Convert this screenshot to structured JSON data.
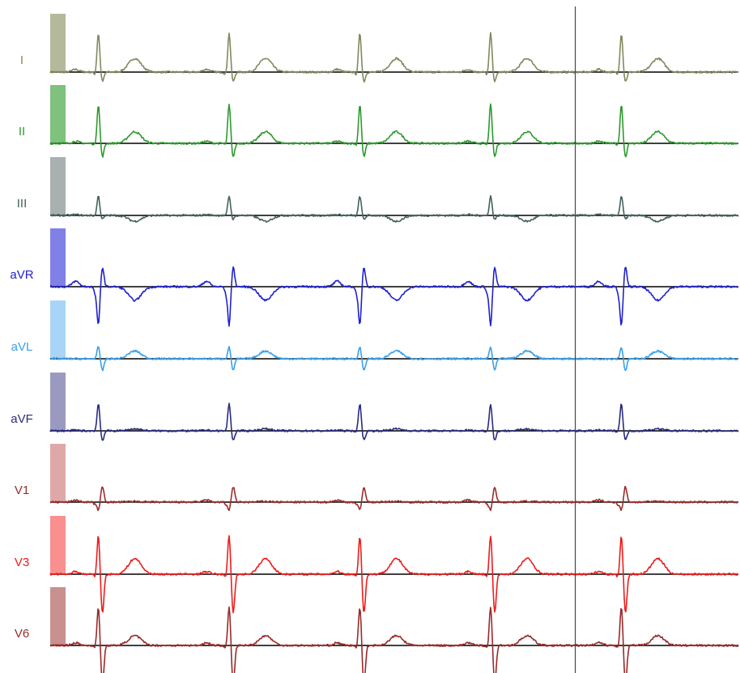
{
  "chart_data": {
    "type": "line",
    "title": "",
    "xlabel": "",
    "ylabel": "",
    "grid": false,
    "beat_count": 5,
    "beat_positions_relative": [
      0.07,
      0.26,
      0.45,
      0.64,
      0.83
    ],
    "cursor_position_relative": 0.763,
    "leads": [
      {
        "name": "I",
        "color": "#7f8a5f",
        "calibration_color": "#b4b99b",
        "qrs": [
          0.2,
          1.0,
          -0.25
        ],
        "t_wave": 0.35,
        "st": 0.0
      },
      {
        "name": "II",
        "color": "#2e9a2e",
        "calibration_color": "#7ec27e",
        "qrs": [
          0.15,
          1.0,
          -0.35
        ],
        "t_wave": 0.3,
        "st": 0.0
      },
      {
        "name": "III",
        "color": "#45605e",
        "calibration_color": "#a8b1b0",
        "qrs": [
          0.05,
          0.5,
          -0.1
        ],
        "t_wave": -0.15,
        "st": 0.0
      },
      {
        "name": "aVR",
        "color": "#2222cc",
        "calibration_color": "#8080e6",
        "qrs": [
          0.4,
          -1.0,
          0.5
        ],
        "t_wave": -0.35,
        "st": 0.0
      },
      {
        "name": "aVL",
        "color": "#3aa0ec",
        "calibration_color": "#a8d4f7",
        "qrs": [
          0.0,
          0.3,
          -0.3
        ],
        "t_wave": 0.2,
        "st": 0.0
      },
      {
        "name": "aVF",
        "color": "#2b2b80",
        "calibration_color": "#9a9ac0",
        "qrs": [
          0.05,
          0.7,
          -0.25
        ],
        "t_wave": 0.05,
        "st": 0.0
      },
      {
        "name": "V1",
        "color": "#9e2b2b",
        "calibration_color": "#dfa8a8",
        "qrs": [
          0.15,
          -0.2,
          0.4
        ],
        "t_wave": 0.02,
        "st": 0.0
      },
      {
        "name": "V3",
        "color": "#f01c1c",
        "calibration_color": "#fa8f8f",
        "qrs": [
          0.2,
          1.0,
          -1.0
        ],
        "t_wave": 0.4,
        "st": 0.0
      },
      {
        "name": "V6",
        "color": "#9a2a2a",
        "calibration_color": "#c99090",
        "qrs": [
          0.2,
          1.0,
          -1.0
        ],
        "t_wave": 0.25,
        "st": 0.0
      }
    ]
  }
}
